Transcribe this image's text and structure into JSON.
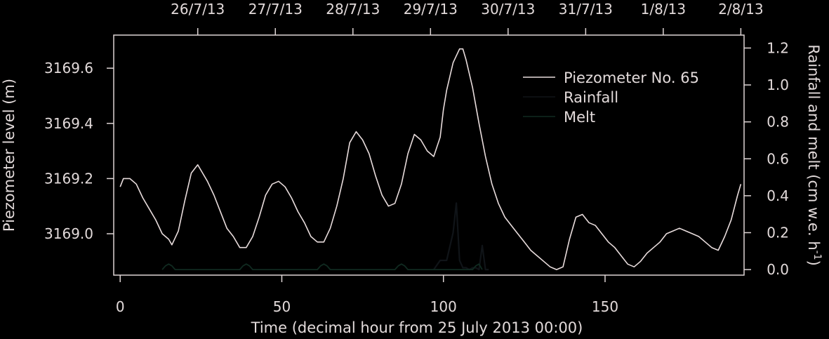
{
  "chart_data": {
    "type": "line",
    "xlabel": "Time (decimal hour from 25 July 2013 00:00)",
    "ylabel_left": "Piezometer level (m)",
    "ylabel_right": {
      "main": "Rainfall and melt (cm w.e. h",
      "sup": "-1",
      "close": ")"
    },
    "xlim": [
      -2,
      193
    ],
    "ylim_left": [
      3168.85,
      3169.72
    ],
    "ylim_right": [
      -0.03,
      1.27
    ],
    "x_ticks": [
      0,
      50,
      100,
      150
    ],
    "x_tick_labels": [
      "0",
      "50",
      "100",
      "150"
    ],
    "left_ticks": [
      3169.0,
      3169.2,
      3169.4,
      3169.6
    ],
    "left_tick_labels": [
      "3169.0",
      "3169.2",
      "3169.4",
      "3169.6"
    ],
    "right_ticks": [
      0.0,
      0.2,
      0.4,
      0.6,
      0.8,
      1.0,
      1.2
    ],
    "right_tick_labels": [
      "0.0",
      "0.2",
      "0.4",
      "0.6",
      "0.8",
      "1.0",
      "1.2"
    ],
    "top_ticks": [
      24,
      48,
      72,
      96,
      120,
      144,
      168,
      192
    ],
    "top_tick_labels": [
      "26/7/13",
      "27/7/13",
      "28/7/13",
      "29/7/13",
      "30/7/13",
      "31/7/13",
      "1/8/13",
      "2/8/13"
    ],
    "legend": {
      "position": "top-right",
      "entries": [
        "Piezometer No. 65",
        "Rainfall",
        "Melt"
      ]
    },
    "colors": {
      "background": "#000000",
      "piezometer": "#e8dcdc",
      "rainfall": "#101418",
      "melt": "#102a20",
      "axes": "#ddd4d4"
    },
    "series": [
      {
        "name": "Piezometer No. 65",
        "axis": "left",
        "x": [
          0,
          1,
          3,
          5,
          7,
          9,
          11,
          13,
          15,
          16,
          18,
          20,
          22,
          24,
          25,
          27,
          29,
          31,
          33,
          35,
          37,
          39,
          41,
          43,
          45,
          47,
          49,
          51,
          53,
          55,
          57,
          59,
          61,
          63,
          65,
          67,
          69,
          71,
          73,
          75,
          77,
          79,
          81,
          83,
          85,
          87,
          89,
          91,
          93,
          95,
          97,
          99,
          100,
          101,
          103,
          105,
          106,
          107,
          109,
          111,
          113,
          115,
          117,
          119,
          121,
          123,
          125,
          127,
          129,
          131,
          133,
          135,
          137,
          139,
          141,
          143,
          145,
          147,
          149,
          151,
          153,
          155,
          157,
          159,
          161,
          163,
          165,
          167,
          169,
          171,
          173,
          175,
          177,
          179,
          181,
          183,
          185,
          187,
          189,
          191,
          192
        ],
        "y": [
          3169.17,
          3169.2,
          3169.2,
          3169.18,
          3169.13,
          3169.09,
          3169.05,
          3169.0,
          3168.98,
          3168.96,
          3169.01,
          3169.12,
          3169.22,
          3169.25,
          3169.23,
          3169.19,
          3169.14,
          3169.08,
          3169.02,
          3168.99,
          3168.95,
          3168.95,
          3168.99,
          3169.06,
          3169.14,
          3169.18,
          3169.19,
          3169.17,
          3169.13,
          3169.08,
          3169.04,
          3168.99,
          3168.97,
          3168.97,
          3169.02,
          3169.1,
          3169.2,
          3169.33,
          3169.37,
          3169.34,
          3169.29,
          3169.21,
          3169.14,
          3169.1,
          3169.11,
          3169.18,
          3169.29,
          3169.36,
          3169.34,
          3169.3,
          3169.28,
          3169.35,
          3169.45,
          3169.52,
          3169.62,
          3169.67,
          3169.67,
          3169.63,
          3169.53,
          3169.4,
          3169.28,
          3169.18,
          3169.11,
          3169.06,
          3169.03,
          3169.0,
          3168.97,
          3168.94,
          3168.92,
          3168.9,
          3168.88,
          3168.87,
          3168.88,
          3168.98,
          3169.06,
          3169.07,
          3169.04,
          3169.03,
          3169.0,
          3168.97,
          3168.95,
          3168.92,
          3168.89,
          3168.88,
          3168.9,
          3168.93,
          3168.95,
          3168.97,
          3169.0,
          3169.01,
          3169.02,
          3169.01,
          3169.0,
          3168.99,
          3168.97,
          3168.95,
          3168.94,
          3168.99,
          3169.05,
          3169.14,
          3169.18
        ]
      },
      {
        "name": "Rainfall",
        "axis": "right",
        "x": [
          97,
          99,
          101,
          103,
          104,
          105,
          106,
          107,
          108,
          109,
          110,
          111,
          112,
          113,
          114
        ],
        "y": [
          0.0,
          0.05,
          0.05,
          0.2,
          0.36,
          0.05,
          0.01,
          0.01,
          0.0,
          0.01,
          0.01,
          0.0,
          0.13,
          0.0,
          0.0
        ]
      },
      {
        "name": "Melt",
        "axis": "right",
        "x": [
          13,
          14,
          15,
          16,
          17,
          37,
          38,
          39,
          40,
          41,
          61,
          62,
          63,
          64,
          65,
          85,
          86,
          87,
          88,
          89,
          109,
          110,
          111,
          112
        ],
        "y": [
          0.0,
          0.02,
          0.03,
          0.02,
          0.0,
          0.0,
          0.02,
          0.03,
          0.02,
          0.0,
          0.0,
          0.02,
          0.03,
          0.02,
          0.0,
          0.0,
          0.02,
          0.03,
          0.02,
          0.0,
          0.0,
          0.02,
          0.03,
          0.0
        ]
      }
    ]
  }
}
